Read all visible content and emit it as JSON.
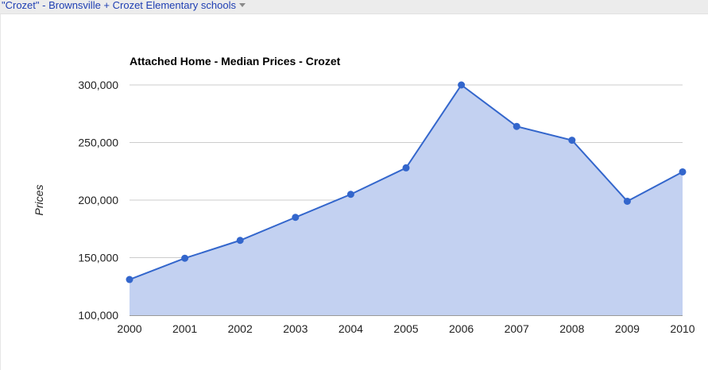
{
  "header": {
    "title": "\"Crozet\" - Brownsville + Crozet Elementary schools"
  },
  "colors": {
    "line": "#3366cc",
    "area": "#c3d1f1",
    "grid": "#cccccc"
  },
  "chart_data": {
    "type": "area",
    "title": "Attached Home - Median Prices - Crozet",
    "xlabel": "",
    "ylabel": "Prices",
    "x": [
      "2000",
      "2001",
      "2002",
      "2003",
      "2004",
      "2005",
      "2006",
      "2007",
      "2008",
      "2009",
      "2010"
    ],
    "series": [
      {
        "values": [
          131000,
          149500,
          165000,
          185000,
          205000,
          228000,
          300000,
          264000,
          252000,
          199000,
          224500
        ]
      }
    ],
    "ylim": [
      100000,
      300000
    ],
    "yticks": [
      "100,000",
      "150,000",
      "200,000",
      "250,000",
      "300,000"
    ],
    "grid": true,
    "legend": "none"
  }
}
